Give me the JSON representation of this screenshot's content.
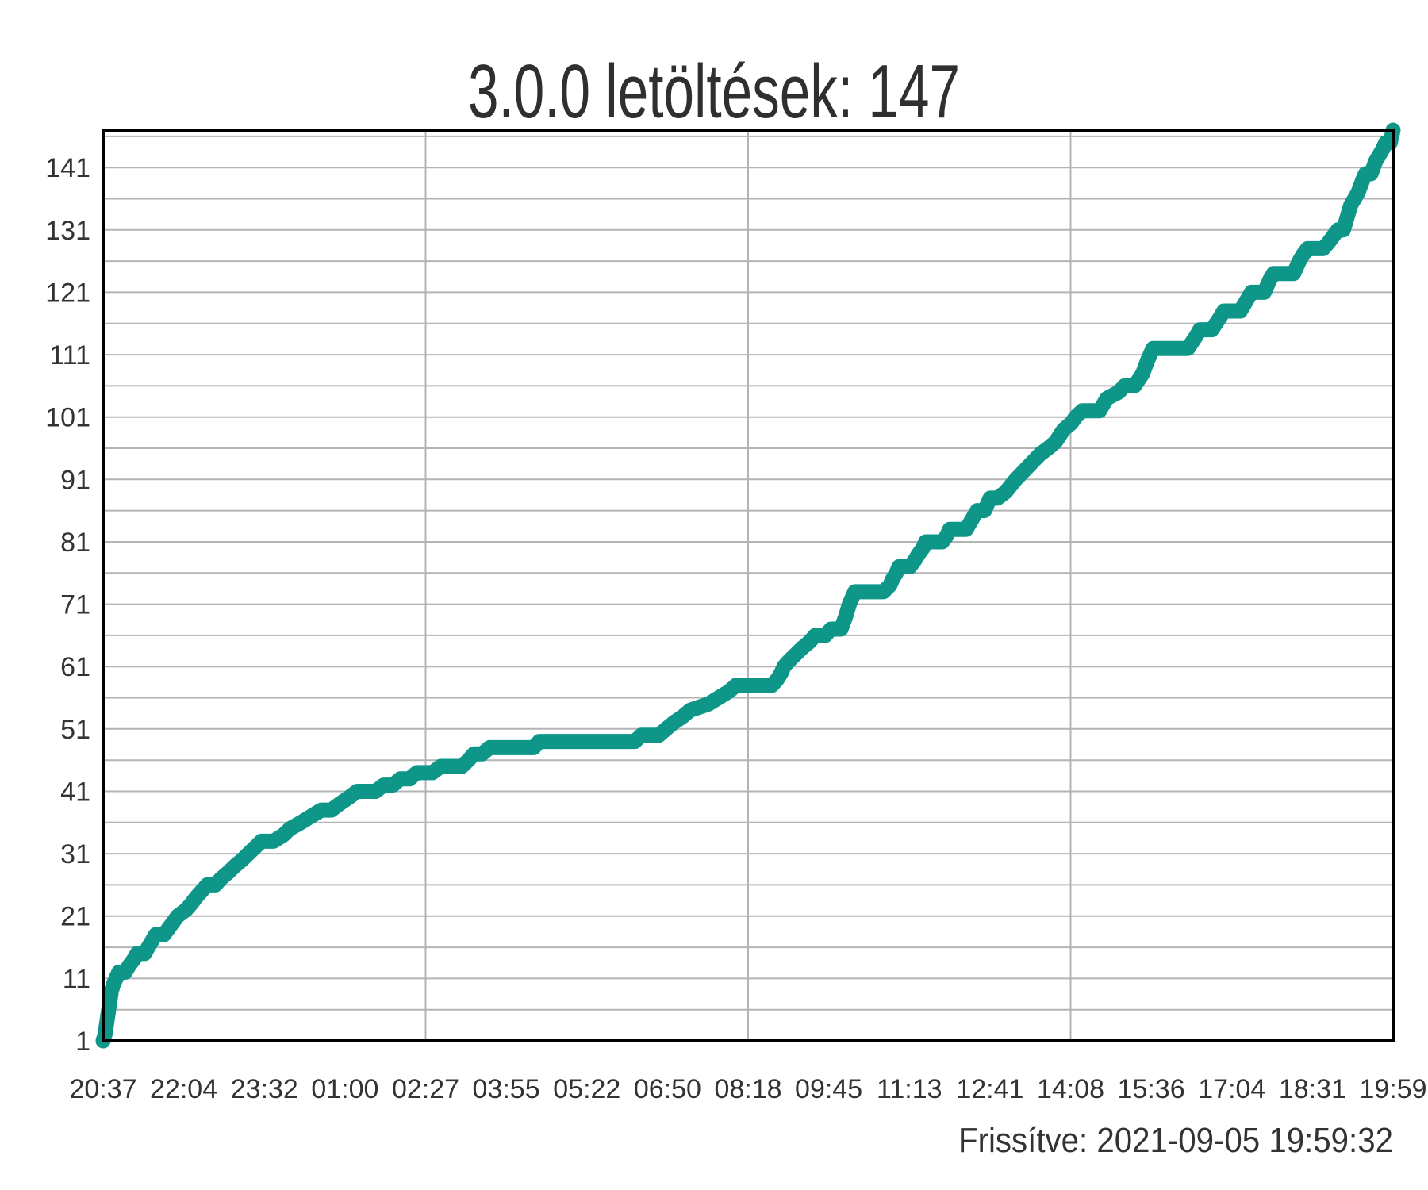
{
  "page": {
    "background": "#ffffff"
  },
  "chart_data": {
    "type": "line",
    "title": "3.0.0 letöltések: 147",
    "series_name": "3.0.0 letöltések",
    "total_downloads": 147,
    "updated_label": "Frissítve: 2021-09-05 19:59:32",
    "x_tick_labels": [
      "20:37",
      "22:04",
      "23:32",
      "01:00",
      "02:27",
      "03:55",
      "05:22",
      "06:50",
      "08:18",
      "09:45",
      "11:13",
      "12:41",
      "14:08",
      "15:36",
      "17:04",
      "18:31",
      "19:59"
    ],
    "x_range_minutes": [
      0,
      1402
    ],
    "x_major_gridline_indices": [
      4,
      8,
      12
    ],
    "y_tick_labels": [
      1,
      11,
      21,
      31,
      41,
      51,
      61,
      71,
      81,
      91,
      101,
      111,
      121,
      131,
      141
    ],
    "y_minor_grid_step": 5,
    "ylim": [
      1,
      147
    ],
    "grid": true,
    "legend_position": "none",
    "colors": {
      "line": "#0e9789",
      "grid": "#b4b4b4",
      "axis": "#000000",
      "text": "#333333"
    },
    "points": [
      [
        0,
        1
      ],
      [
        2,
        2
      ],
      [
        3,
        3
      ],
      [
        5,
        5
      ],
      [
        7,
        7
      ],
      [
        9,
        9
      ],
      [
        11,
        10
      ],
      [
        14,
        11
      ],
      [
        17,
        12
      ],
      [
        24,
        12
      ],
      [
        28,
        13
      ],
      [
        33,
        14
      ],
      [
        37,
        15
      ],
      [
        45,
        15
      ],
      [
        49,
        16
      ],
      [
        53,
        17
      ],
      [
        57,
        18
      ],
      [
        66,
        18
      ],
      [
        71,
        19
      ],
      [
        76,
        20
      ],
      [
        81,
        21
      ],
      [
        90,
        22
      ],
      [
        96,
        23
      ],
      [
        101,
        24
      ],
      [
        107,
        25
      ],
      [
        113,
        26
      ],
      [
        122,
        26
      ],
      [
        128,
        27
      ],
      [
        136,
        28
      ],
      [
        143,
        29
      ],
      [
        151,
        30
      ],
      [
        158,
        31
      ],
      [
        165,
        32
      ],
      [
        172,
        33
      ],
      [
        185,
        33
      ],
      [
        196,
        34
      ],
      [
        203,
        35
      ],
      [
        215,
        36
      ],
      [
        226,
        37
      ],
      [
        237,
        38
      ],
      [
        248,
        38
      ],
      [
        257,
        39
      ],
      [
        267,
        40
      ],
      [
        276,
        41
      ],
      [
        296,
        41
      ],
      [
        305,
        42
      ],
      [
        315,
        42
      ],
      [
        323,
        43
      ],
      [
        333,
        43
      ],
      [
        341,
        44
      ],
      [
        358,
        44
      ],
      [
        367,
        45
      ],
      [
        390,
        45
      ],
      [
        397,
        46
      ],
      [
        403,
        47
      ],
      [
        412,
        47
      ],
      [
        420,
        48
      ],
      [
        468,
        48
      ],
      [
        474,
        49
      ],
      [
        578,
        49
      ],
      [
        585,
        50
      ],
      [
        604,
        50
      ],
      [
        612,
        51
      ],
      [
        620,
        52
      ],
      [
        630,
        53
      ],
      [
        638,
        54
      ],
      [
        658,
        55
      ],
      [
        669,
        56
      ],
      [
        680,
        57
      ],
      [
        688,
        58
      ],
      [
        727,
        58
      ],
      [
        733,
        59
      ],
      [
        737,
        60
      ],
      [
        740,
        61
      ],
      [
        746,
        62
      ],
      [
        753,
        63
      ],
      [
        760,
        64
      ],
      [
        768,
        65
      ],
      [
        774,
        66
      ],
      [
        785,
        66
      ],
      [
        791,
        67
      ],
      [
        802,
        67
      ],
      [
        807,
        69
      ],
      [
        811,
        71
      ],
      [
        817,
        73
      ],
      [
        848,
        73
      ],
      [
        855,
        74
      ],
      [
        858,
        75
      ],
      [
        862,
        76
      ],
      [
        865,
        77
      ],
      [
        877,
        77
      ],
      [
        882,
        78
      ],
      [
        886,
        79
      ],
      [
        891,
        80
      ],
      [
        894,
        81
      ],
      [
        912,
        81
      ],
      [
        917,
        82
      ],
      [
        920,
        83
      ],
      [
        938,
        83
      ],
      [
        946,
        85
      ],
      [
        950,
        86
      ],
      [
        958,
        86
      ],
      [
        964,
        88
      ],
      [
        972,
        88
      ],
      [
        981,
        89
      ],
      [
        992,
        91
      ],
      [
        1005,
        93
      ],
      [
        1018,
        95
      ],
      [
        1027,
        96
      ],
      [
        1035,
        97
      ],
      [
        1044,
        99
      ],
      [
        1052,
        100
      ],
      [
        1057,
        101
      ],
      [
        1064,
        102
      ],
      [
        1083,
        102
      ],
      [
        1091,
        104
      ],
      [
        1104,
        105
      ],
      [
        1110,
        106
      ],
      [
        1121,
        106
      ],
      [
        1130,
        108
      ],
      [
        1135,
        110
      ],
      [
        1141,
        112
      ],
      [
        1179,
        112
      ],
      [
        1188,
        114
      ],
      [
        1192,
        115
      ],
      [
        1205,
        115
      ],
      [
        1214,
        117
      ],
      [
        1218,
        118
      ],
      [
        1236,
        118
      ],
      [
        1244,
        120
      ],
      [
        1248,
        121
      ],
      [
        1262,
        121
      ],
      [
        1268,
        123
      ],
      [
        1272,
        124
      ],
      [
        1294,
        124
      ],
      [
        1300,
        126
      ],
      [
        1304,
        127
      ],
      [
        1309,
        128
      ],
      [
        1326,
        128
      ],
      [
        1332,
        129
      ],
      [
        1337,
        130
      ],
      [
        1342,
        131
      ],
      [
        1348,
        131
      ],
      [
        1352,
        133
      ],
      [
        1356,
        135
      ],
      [
        1360,
        136
      ],
      [
        1364,
        137
      ],
      [
        1369,
        139
      ],
      [
        1372,
        140
      ],
      [
        1378,
        140
      ],
      [
        1383,
        142
      ],
      [
        1387,
        143
      ],
      [
        1391,
        144
      ],
      [
        1394,
        145
      ],
      [
        1399,
        145
      ],
      [
        1402,
        147
      ]
    ]
  }
}
